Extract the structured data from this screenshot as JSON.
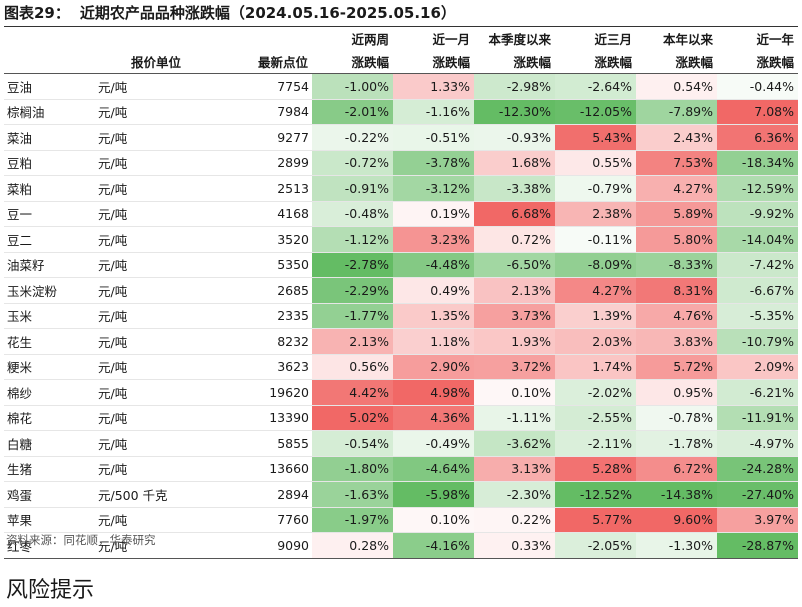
{
  "title": {
    "num": "图表29：",
    "text": "近期农产品品种涨跌幅（2024.05.16-2025.05.16）"
  },
  "header": {
    "row1": [
      "",
      "",
      "",
      "近两周",
      "近一月",
      "本季度以来",
      "近三月",
      "本年以来",
      "近一年"
    ],
    "row2": [
      "",
      "报价单位",
      "最新点位",
      "涨跌幅",
      "涨跌幅",
      "涨跌幅",
      "涨跌幅",
      "涨跌幅",
      "涨跌幅"
    ]
  },
  "rows": [
    {
      "name": "豆油",
      "unit": "元/吨",
      "point": "7754",
      "values": [
        "-1.00%",
        "1.33%",
        "-2.98%",
        "-2.64%",
        "0.54%",
        "-0.44%"
      ]
    },
    {
      "name": "棕榈油",
      "unit": "元/吨",
      "point": "7984",
      "values": [
        "-2.01%",
        "-1.16%",
        "-12.30%",
        "-12.05%",
        "-7.89%",
        "7.08%"
      ]
    },
    {
      "name": "菜油",
      "unit": "元/吨",
      "point": "9277",
      "values": [
        "-0.22%",
        "-0.51%",
        "-0.93%",
        "5.43%",
        "2.43%",
        "6.36%"
      ]
    },
    {
      "name": "豆粕",
      "unit": "元/吨",
      "point": "2899",
      "values": [
        "-0.72%",
        "-3.78%",
        "1.68%",
        "0.55%",
        "7.53%",
        "-18.34%"
      ]
    },
    {
      "name": "菜粕",
      "unit": "元/吨",
      "point": "2513",
      "values": [
        "-0.91%",
        "-3.12%",
        "-3.38%",
        "-0.79%",
        "4.27%",
        "-12.59%"
      ]
    },
    {
      "name": "豆一",
      "unit": "元/吨",
      "point": "4168",
      "values": [
        "-0.48%",
        "0.19%",
        "6.68%",
        "2.38%",
        "5.89%",
        "-9.92%"
      ]
    },
    {
      "name": "豆二",
      "unit": "元/吨",
      "point": "3520",
      "values": [
        "-1.12%",
        "3.23%",
        "0.72%",
        "-0.11%",
        "5.80%",
        "-14.04%"
      ]
    },
    {
      "name": "油菜籽",
      "unit": "元/吨",
      "point": "5350",
      "values": [
        "-2.78%",
        "-4.48%",
        "-6.50%",
        "-8.09%",
        "-8.33%",
        "-7.42%"
      ]
    },
    {
      "name": "玉米淀粉",
      "unit": "元/吨",
      "point": "2685",
      "values": [
        "-2.29%",
        "0.49%",
        "2.13%",
        "4.27%",
        "8.31%",
        "-6.67%"
      ]
    },
    {
      "name": "玉米",
      "unit": "元/吨",
      "point": "2335",
      "values": [
        "-1.77%",
        "1.35%",
        "3.73%",
        "1.39%",
        "4.76%",
        "-5.35%"
      ]
    },
    {
      "name": "花生",
      "unit": "元/吨",
      "point": "8232",
      "values": [
        "2.13%",
        "1.18%",
        "1.93%",
        "2.03%",
        "3.83%",
        "-10.79%"
      ]
    },
    {
      "name": "粳米",
      "unit": "元/吨",
      "point": "3623",
      "values": [
        "0.56%",
        "2.90%",
        "3.72%",
        "1.74%",
        "5.72%",
        "2.09%"
      ]
    },
    {
      "name": "棉纱",
      "unit": "元/吨",
      "point": "19620",
      "values": [
        "4.42%",
        "4.98%",
        "0.10%",
        "-2.02%",
        "0.95%",
        "-6.21%"
      ]
    },
    {
      "name": "棉花",
      "unit": "元/吨",
      "point": "13390",
      "values": [
        "5.02%",
        "4.36%",
        "-1.11%",
        "-2.55%",
        "-0.78%",
        "-11.91%"
      ]
    },
    {
      "name": "白糖",
      "unit": "元/吨",
      "point": "5855",
      "values": [
        "-0.54%",
        "-0.49%",
        "-3.62%",
        "-2.11%",
        "-1.78%",
        "-4.97%"
      ]
    },
    {
      "name": "生猪",
      "unit": "元/吨",
      "point": "13660",
      "values": [
        "-1.80%",
        "-4.64%",
        "3.13%",
        "5.28%",
        "6.72%",
        "-24.28%"
      ]
    },
    {
      "name": "鸡蛋",
      "unit": "元/500 千克",
      "point": "2894",
      "values": [
        "-1.63%",
        "-5.98%",
        "-2.30%",
        "-12.52%",
        "-14.38%",
        "-27.40%"
      ]
    },
    {
      "name": "苹果",
      "unit": "元/吨",
      "point": "7760",
      "values": [
        "-1.97%",
        "0.10%",
        "0.22%",
        "5.77%",
        "9.60%",
        "3.97%"
      ]
    },
    {
      "name": "红枣",
      "unit": "元/吨",
      "point": "9090",
      "values": [
        "0.28%",
        "-4.16%",
        "0.33%",
        "-2.05%",
        "-1.30%",
        "-28.87%"
      ]
    }
  ],
  "colors": {
    "positive": "#f0605e",
    "negative": "#5cb85c",
    "neutral": "#ffffff"
  },
  "source": "资料来源：同花顺，华泰研究",
  "section_heading": "风险提示"
}
